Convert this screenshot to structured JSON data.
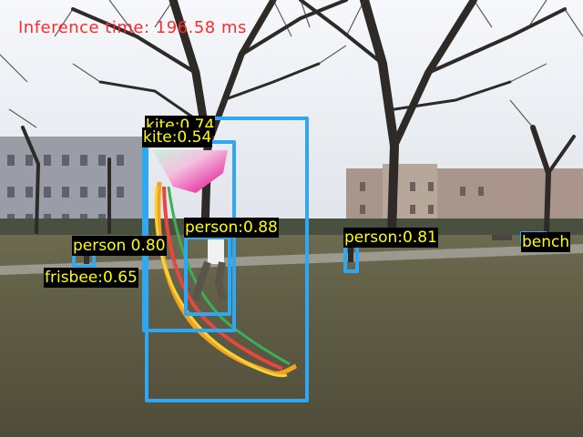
{
  "overlay": {
    "inference_text": "Inference time: 196.58 ms",
    "inference_color": "#ff2a2a",
    "box_color": "#2fa8f4",
    "label_text_color": "#ffff00",
    "label_bg_color": "#000000"
  },
  "detections": [
    {
      "label": "kite:0.74"
    },
    {
      "label": "kite:0.54"
    },
    {
      "label": "person:0.88"
    },
    {
      "label": "person 0.80"
    },
    {
      "label": "frisbee:0.65"
    },
    {
      "label": "person:0.81"
    },
    {
      "label": "bench"
    }
  ]
}
